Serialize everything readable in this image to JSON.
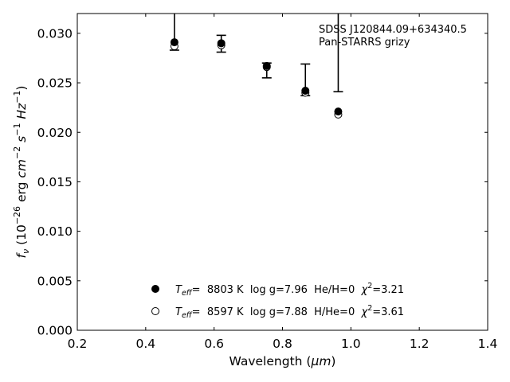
{
  "chart_data": {
    "type": "scatter",
    "xlabel": "Wavelength (",
    "xlabel_unit": "μm",
    "xlabel_close": ")",
    "ylabel": {
      "f": "f",
      "f_sub": "ν",
      "open": " (10",
      "exp": "−26",
      "mid": " erg ",
      "cm": "cm",
      "cm_exp": "−2",
      "s": " s",
      "s_exp": "−1",
      "hz": " Hz",
      "hz_exp": "−1",
      "close": ")"
    },
    "xlim": [
      0.2,
      1.4
    ],
    "ylim": [
      0.0,
      0.032
    ],
    "xticks": [
      "0.2",
      "0.4",
      "0.6",
      "0.8",
      "1.0",
      "1.2",
      "1.4"
    ],
    "yticks": [
      "0.000",
      "0.005",
      "0.010",
      "0.015",
      "0.020",
      "0.025",
      "0.030"
    ],
    "grid": false,
    "legend_position": "lower-center",
    "annotations": [
      "SDSS J120844.09+634340.5",
      "Pan-STARRS grizy"
    ],
    "series": [
      {
        "marker": "filled-circle",
        "legend": {
          "teff_sym": "T",
          "teff_sub": "eff",
          "teff_eq": "=  8803 K  log g=7.96  He/H=0  ",
          "chi_sym": "χ",
          "chi_exp": "2",
          "chi_val": "=3.21"
        },
        "x": [
          0.484,
          0.621,
          0.754,
          0.867,
          0.963
        ],
        "y": [
          0.0291,
          0.029,
          0.0267,
          0.0242,
          0.0221
        ]
      },
      {
        "marker": "open-circle",
        "legend": {
          "teff_sym": "T",
          "teff_sub": "eff",
          "teff_eq": "=  8597 K  log g=7.88  H/He=0  ",
          "chi_sym": "χ",
          "chi_exp": "2",
          "chi_val": "=3.61"
        },
        "x": [
          0.484,
          0.621,
          0.754,
          0.867,
          0.963
        ],
        "y": [
          0.0287,
          0.0288,
          0.0266,
          0.024,
          0.0218
        ]
      }
    ],
    "observations": {
      "x": [
        0.484,
        0.621,
        0.754,
        0.867,
        0.963
      ],
      "y_low": [
        0.0283,
        0.0281,
        0.0255,
        0.0237,
        0.0241
      ],
      "y_high": [
        0.035,
        0.0298,
        0.027,
        0.0269,
        0.035
      ],
      "cap_low": [
        true,
        true,
        true,
        true,
        true
      ],
      "cap_high": [
        false,
        true,
        true,
        true,
        false
      ]
    }
  }
}
